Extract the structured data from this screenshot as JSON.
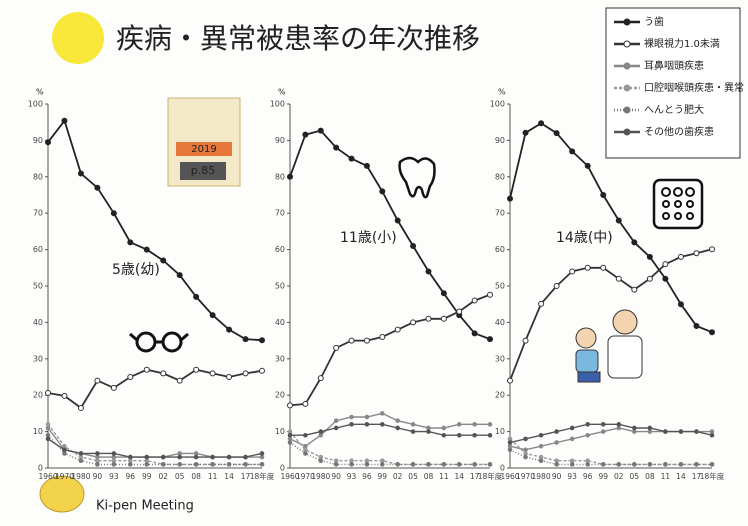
{
  "title": "疾病・異常被患率の年次推移",
  "legend": [
    {
      "name": "う歯",
      "color": "#222222",
      "dash": "none"
    },
    {
      "name": "裸眼視力1.0未満",
      "color": "#333333",
      "dash": "none"
    },
    {
      "name": "耳鼻咽頭疾患",
      "color": "#888888",
      "dash": "none"
    },
    {
      "name": "口腔咽喉頭疾患・異常",
      "color": "#999999",
      "dash": "3 2"
    },
    {
      "name": "へんとう肥大",
      "color": "#777777",
      "dash": "1 2"
    },
    {
      "name": "その他の歯疾患",
      "color": "#555555",
      "dash": "none"
    }
  ],
  "book": {
    "year": "2019",
    "page": "p.85"
  },
  "footer": "Ki-pen Meeting",
  "chart_data": [
    {
      "type": "line",
      "title": "5歳(幼)",
      "ylabel": "%",
      "categories": [
        "1960",
        "1970",
        "1980",
        "90",
        "93",
        "96",
        "99",
        "02",
        "05",
        "08",
        "11",
        "14",
        "17",
        "18年度"
      ],
      "ylim": [
        0,
        100
      ],
      "yticks": [
        0,
        10,
        20,
        30,
        40,
        50,
        60,
        70,
        80,
        90,
        100
      ],
      "series": [
        {
          "values": [
            89.5,
            95.4,
            80.9,
            77,
            70,
            62,
            60,
            57,
            53,
            47,
            42,
            38,
            35.4,
            35.1
          ]
        },
        {
          "values": [
            20.6,
            19.8,
            16.5,
            24,
            22,
            25,
            27,
            26,
            24,
            27,
            26,
            25,
            26,
            26.7
          ]
        },
        {
          "values": [
            11,
            5,
            4,
            3,
            3,
            3,
            3,
            3,
            4,
            4,
            3,
            3,
            3,
            3
          ]
        },
        {
          "values": [
            12,
            6,
            3,
            2,
            2,
            2,
            2,
            1,
            1,
            1,
            1,
            1,
            1,
            1
          ]
        },
        {
          "values": [
            9,
            4,
            2,
            1,
            1,
            1,
            1,
            1,
            1,
            1,
            1,
            1,
            1,
            1
          ]
        },
        {
          "values": [
            8,
            5,
            4,
            4,
            4,
            3,
            3,
            3,
            3,
            3,
            3,
            3,
            3,
            4
          ]
        }
      ]
    },
    {
      "type": "line",
      "title": "11歳(小)",
      "ylabel": "%",
      "categories": [
        "1960",
        "1970",
        "1980",
        "90",
        "93",
        "96",
        "99",
        "02",
        "05",
        "08",
        "11",
        "14",
        "17",
        "18年度"
      ],
      "ylim": [
        0,
        100
      ],
      "yticks": [
        0,
        10,
        20,
        30,
        40,
        50,
        60,
        70,
        80,
        90,
        100
      ],
      "series": [
        {
          "values": [
            80,
            91.6,
            92.7,
            88,
            85,
            83,
            76,
            68,
            61,
            54,
            48,
            42,
            37,
            35.4
          ]
        },
        {
          "values": [
            17.2,
            17.6,
            24.7,
            33,
            35,
            35,
            36,
            38,
            40,
            41,
            41,
            43,
            46,
            47.6
          ]
        },
        {
          "values": [
            8,
            6,
            9,
            13,
            14,
            14,
            15,
            13,
            12,
            11,
            11,
            12,
            12,
            12
          ]
        },
        {
          "values": [
            10,
            5,
            3,
            2,
            2,
            2,
            2,
            1,
            1,
            1,
            1,
            1,
            1,
            1
          ]
        },
        {
          "values": [
            7,
            4,
            2,
            1,
            1,
            1,
            1,
            1,
            1,
            1,
            1,
            1,
            1,
            1
          ]
        },
        {
          "values": [
            9,
            9,
            10,
            11,
            12,
            12,
            12,
            11,
            10,
            10,
            9,
            9,
            9,
            9
          ]
        }
      ]
    },
    {
      "type": "line",
      "title": "14歳(中)",
      "ylabel": "%",
      "categories": [
        "1960",
        "1970",
        "1980",
        "90",
        "93",
        "96",
        "99",
        "02",
        "05",
        "08",
        "11",
        "14",
        "17",
        "18年度"
      ],
      "ylim": [
        0,
        100
      ],
      "yticks": [
        0,
        10,
        20,
        30,
        40,
        50,
        60,
        70,
        80,
        90,
        100
      ],
      "series": [
        {
          "values": [
            74,
            92.1,
            94.7,
            92,
            87,
            83,
            75,
            68,
            62,
            58,
            52,
            45,
            39,
            37.3
          ]
        },
        {
          "values": [
            24,
            35,
            45.1,
            50,
            54,
            55,
            55,
            52,
            49,
            52,
            56,
            58,
            59,
            60.1
          ]
        },
        {
          "values": [
            6,
            5,
            6,
            7,
            8,
            9,
            10,
            11,
            10,
            10,
            10,
            10,
            10,
            10
          ]
        },
        {
          "values": [
            8,
            4,
            3,
            2,
            2,
            2,
            1,
            1,
            1,
            1,
            1,
            1,
            1,
            1
          ]
        },
        {
          "values": [
            5,
            3,
            2,
            1,
            1,
            1,
            1,
            1,
            1,
            1,
            1,
            1,
            1,
            1
          ]
        },
        {
          "values": [
            7,
            8,
            9,
            10,
            11,
            12,
            12,
            12,
            11,
            11,
            10,
            10,
            10,
            9
          ]
        }
      ]
    }
  ]
}
